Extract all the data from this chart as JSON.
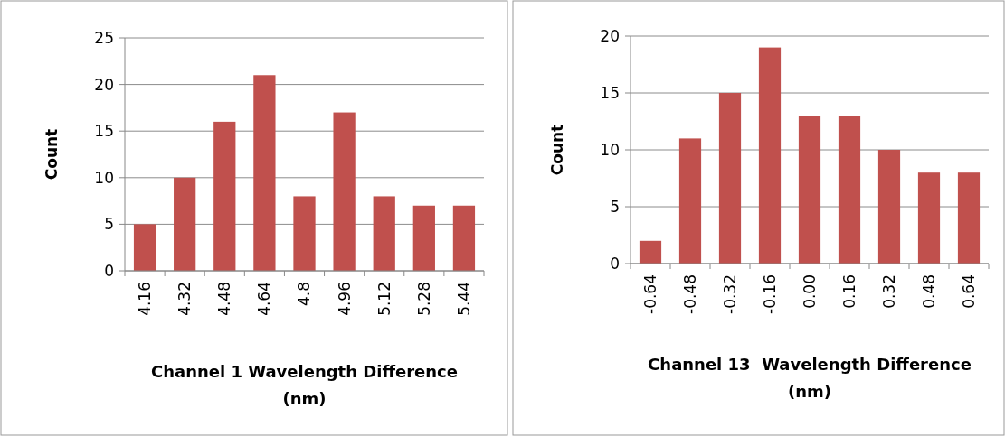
{
  "chart_data": [
    {
      "type": "bar",
      "categories": [
        "4.16",
        "4.32",
        "4.48",
        "4.64",
        "4.8",
        "4.96",
        "5.12",
        "5.28",
        "5.44"
      ],
      "values": [
        5,
        10,
        16,
        21,
        8,
        17,
        8,
        7,
        7
      ],
      "color": "#c0504d",
      "ylabel": "Count",
      "xlabel": "Channel 1 Wavelength Difference (nm)",
      "ylim": [
        0,
        25
      ],
      "yticks": [
        0,
        5,
        10,
        15,
        20,
        25
      ],
      "grid": "y"
    },
    {
      "type": "bar",
      "categories": [
        "-0.64",
        "-0.48",
        "-0.32",
        "-0.16",
        "0.00",
        "0.16",
        "0.32",
        "0.48",
        "0.64"
      ],
      "values": [
        2,
        11,
        15,
        19,
        13,
        13,
        10,
        8,
        8
      ],
      "color": "#c0504d",
      "ylabel": "Count",
      "xlabel": "Channel 13  Wavelength Difference (nm)",
      "ylim": [
        0,
        20
      ],
      "yticks": [
        0,
        5,
        10,
        15,
        20
      ],
      "grid": "y"
    }
  ]
}
